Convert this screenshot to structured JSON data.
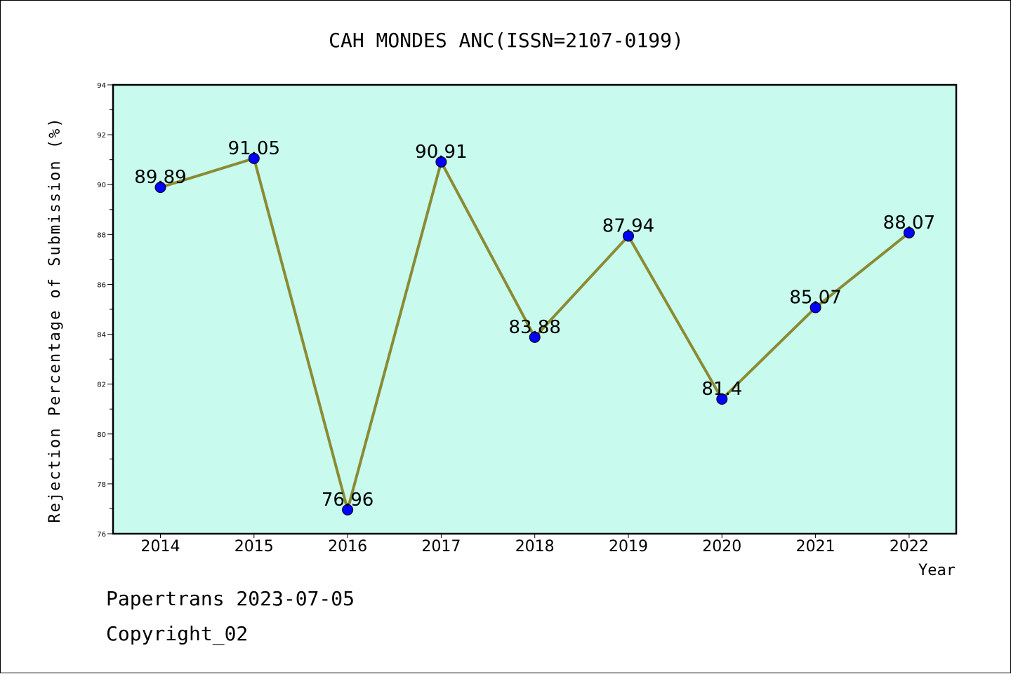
{
  "chart_data": {
    "type": "line",
    "title": "CAH MONDES ANC(ISSN=2107-0199)",
    "xlabel": "Year",
    "ylabel": "Rejection Percentage of Submission (%)",
    "categories": [
      "2014",
      "2015",
      "2016",
      "2017",
      "2018",
      "2019",
      "2020",
      "2021",
      "2022"
    ],
    "values": [
      89.89,
      91.05,
      76.96,
      90.91,
      83.88,
      87.94,
      81.4,
      85.07,
      88.07
    ],
    "data_labels": [
      "89.89",
      "91.05",
      "76.96",
      "90.91",
      "83.88",
      "87.94",
      "81.4",
      "85.07",
      "88.07"
    ],
    "ylim": [
      76,
      94
    ],
    "yticks": [
      "76",
      "78",
      "80",
      "82",
      "84",
      "86",
      "88",
      "90",
      "92",
      "94"
    ],
    "grid": false,
    "colors": {
      "plot_background": "#c8fbee",
      "line": "#8b8b34",
      "marker": "#0000ff"
    }
  },
  "footer": {
    "line1": "Papertrans 2023-07-05",
    "line2": "Copyright_02"
  }
}
